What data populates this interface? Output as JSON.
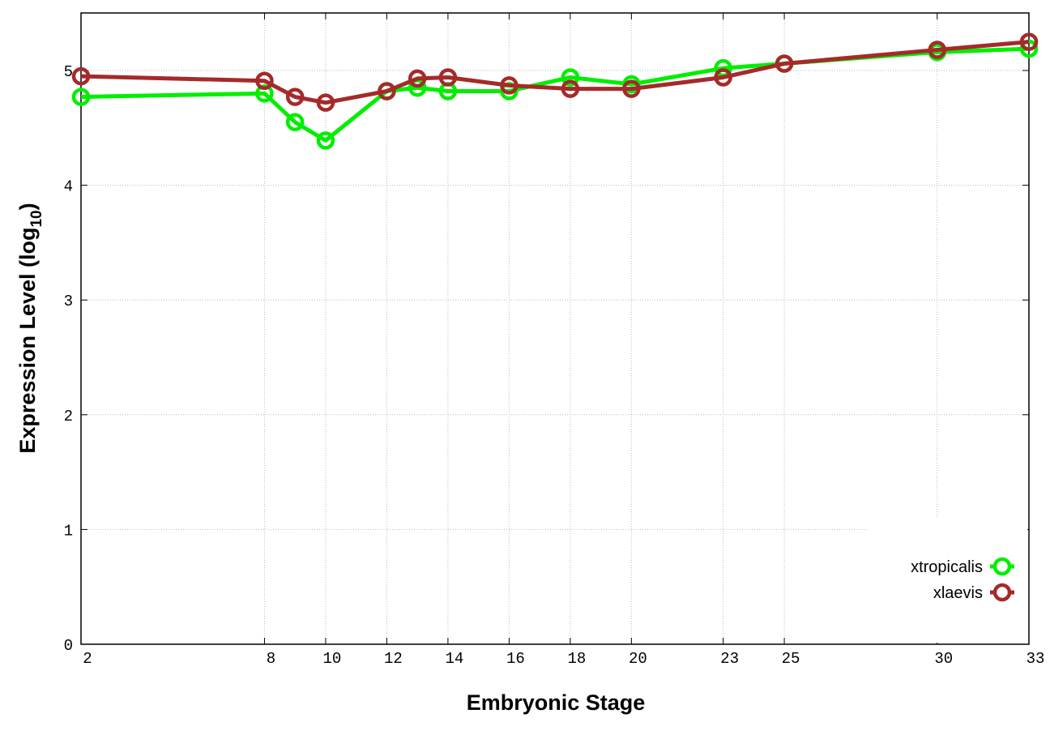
{
  "chart_data": {
    "type": "line",
    "title": "",
    "xlabel": "Embryonic Stage",
    "ylabel": "Expression Level (log",
    "ylabel_subscript": "10",
    "ylabel_suffix": ")",
    "x": [
      2,
      8,
      9,
      10,
      12,
      13,
      14,
      16,
      18,
      20,
      23,
      25,
      30,
      33
    ],
    "x_tick_labels": [
      "2",
      "8",
      "10",
      "12",
      "14",
      "16",
      "18",
      "20",
      "23",
      "25",
      "30",
      "33"
    ],
    "y_tick_labels": [
      "0",
      "1",
      "2",
      "3",
      "4",
      "5"
    ],
    "xlim": [
      2,
      33
    ],
    "ylim": [
      0,
      5.5
    ],
    "grid": true,
    "legend_position": "bottom-right",
    "series": [
      {
        "name": "xtropicalis",
        "color": "#00ee00",
        "values": [
          4.77,
          4.8,
          4.55,
          4.39,
          4.82,
          4.85,
          4.82,
          4.82,
          4.94,
          4.88,
          5.02,
          5.06,
          5.16,
          5.19
        ]
      },
      {
        "name": "xlaevis",
        "color": "#a52a2a",
        "values": [
          4.95,
          4.91,
          4.77,
          4.72,
          4.82,
          4.93,
          4.94,
          4.87,
          4.84,
          4.84,
          4.94,
          5.06,
          5.18,
          5.25
        ]
      }
    ]
  }
}
